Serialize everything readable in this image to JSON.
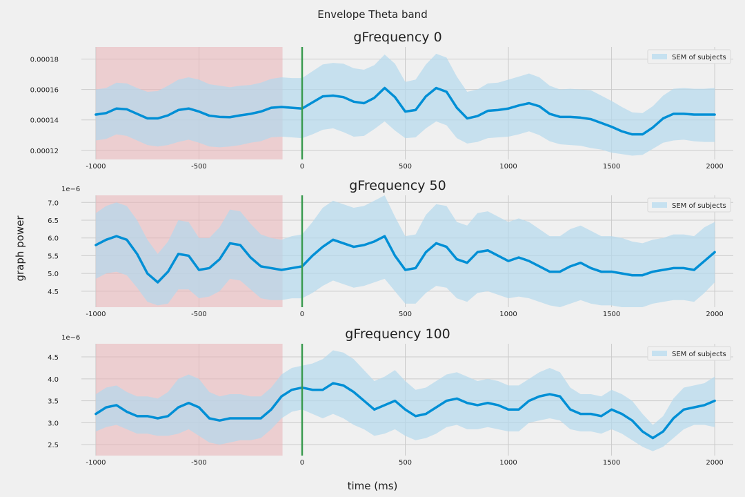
{
  "suptitle": "Envelope Theta band",
  "ylabel": "graph power",
  "xlabel": "time (ms)",
  "colors": {
    "background": "#f0f0f0",
    "grid": "#cbcbcb",
    "line": "#008fd5",
    "band": "#b3d9ec",
    "baseline_shade": "#e9b3b6",
    "onset_line": "#3a9a4f",
    "legend_fill": "#c6e1f0"
  },
  "chart_data": [
    {
      "type": "line",
      "title": "gFrequency 0",
      "legend": {
        "entries": [
          "SEM of subjects"
        ],
        "placement": "top-right"
      },
      "xlim": [
        -1070,
        2090
      ],
      "ylim": [
        0.000114,
        0.000188
      ],
      "x_ticks": [
        -1000,
        -500,
        0,
        500,
        1000,
        1500,
        2000
      ],
      "x_tick_labels": [
        "-1000",
        "-500",
        "0",
        "500",
        "1000",
        "1500",
        "2000"
      ],
      "y_ticks": [
        0.00012,
        0.00014,
        0.00016,
        0.00018
      ],
      "y_tick_labels": [
        "0.00012",
        "0.00014",
        "0.00016",
        "0.00018"
      ],
      "y_offset_label": "",
      "grid": true,
      "baseline_shade": [
        -1000,
        -95
      ],
      "onset_line_x": 0,
      "series": [
        {
          "label": "SEM of subjects",
          "x": [
            -1000,
            -950,
            -900,
            -850,
            -800,
            -750,
            -700,
            -650,
            -600,
            -550,
            -500,
            -450,
            -400,
            -350,
            -300,
            -250,
            -200,
            -150,
            -100,
            -50,
            0,
            50,
            100,
            150,
            200,
            250,
            300,
            350,
            400,
            450,
            500,
            550,
            600,
            650,
            700,
            750,
            800,
            850,
            900,
            950,
            1000,
            1050,
            1100,
            1150,
            1200,
            1250,
            1300,
            1350,
            1400,
            1450,
            1500,
            1550,
            1600,
            1650,
            1700,
            1750,
            1800,
            1850,
            1900,
            1950,
            2000
          ],
          "mean": [
            0.0001435,
            0.0001445,
            0.0001475,
            0.000147,
            0.000144,
            0.000141,
            0.000141,
            0.000143,
            0.0001465,
            0.0001475,
            0.0001455,
            0.0001428,
            0.000142,
            0.0001418,
            0.000143,
            0.000144,
            0.0001455,
            0.000148,
            0.0001485,
            0.000148,
            0.0001475,
            0.0001515,
            0.0001555,
            0.000156,
            0.000155,
            0.000152,
            0.000151,
            0.0001545,
            0.000161,
            0.000155,
            0.0001455,
            0.0001465,
            0.0001555,
            0.000161,
            0.0001585,
            0.000148,
            0.000141,
            0.0001425,
            0.000146,
            0.0001465,
            0.0001475,
            0.0001495,
            0.000151,
            0.000149,
            0.000144,
            0.000142,
            0.000142,
            0.0001415,
            0.0001405,
            0.000138,
            0.0001355,
            0.0001325,
            0.0001305,
            0.0001305,
            0.000135,
            0.000141,
            0.000144,
            0.000144,
            0.0001435,
            0.0001435,
            0.0001435
          ],
          "lower": [
            0.0001265,
            0.0001275,
            0.0001305,
            0.0001295,
            0.0001265,
            0.0001235,
            0.0001225,
            0.0001235,
            0.0001255,
            0.000127,
            0.000125,
            0.0001225,
            0.000122,
            0.0001225,
            0.0001235,
            0.000125,
            0.000126,
            0.0001285,
            0.000129,
            0.0001285,
            0.000128,
            0.0001305,
            0.0001335,
            0.0001345,
            0.000132,
            0.000129,
            0.0001295,
            0.000134,
            0.000139,
            0.000133,
            0.000128,
            0.0001285,
            0.0001345,
            0.000139,
            0.0001365,
            0.000128,
            0.0001245,
            0.0001255,
            0.000128,
            0.0001285,
            0.000129,
            0.0001305,
            0.0001325,
            0.00013,
            0.000126,
            0.000124,
            0.0001235,
            0.000123,
            0.0001215,
            0.0001205,
            0.0001185,
            0.0001175,
            0.0001165,
            0.000117,
            0.000121,
            0.000125,
            0.0001265,
            0.000127,
            0.000126,
            0.0001255,
            0.0001255
          ],
          "upper": [
            0.00016,
            0.000161,
            0.0001645,
            0.000164,
            0.000161,
            0.0001585,
            0.000159,
            0.0001625,
            0.0001665,
            0.000168,
            0.0001665,
            0.0001635,
            0.0001625,
            0.0001615,
            0.0001625,
            0.000163,
            0.0001645,
            0.000167,
            0.000168,
            0.0001675,
            0.0001675,
            0.000172,
            0.0001765,
            0.0001775,
            0.000177,
            0.000174,
            0.000173,
            0.000176,
            0.000183,
            0.000177,
            0.000165,
            0.0001665,
            0.0001765,
            0.0001835,
            0.000181,
            0.0001685,
            0.0001585,
            0.00016,
            0.000164,
            0.0001645,
            0.0001665,
            0.0001685,
            0.0001705,
            0.000168,
            0.0001625,
            0.00016,
            0.0001605,
            0.00016,
            0.0001595,
            0.000156,
            0.0001525,
            0.0001485,
            0.000145,
            0.0001445,
            0.000149,
            0.000156,
            0.0001605,
            0.000161,
            0.0001605,
            0.0001605,
            0.000161
          ]
        }
      ]
    },
    {
      "type": "line",
      "title": "gFrequency 50",
      "legend": {
        "entries": [
          "SEM of subjects"
        ],
        "placement": "top-right"
      },
      "xlim": [
        -1070,
        2090
      ],
      "ylim": [
        4.05,
        7.2
      ],
      "x_ticks": [
        -1000,
        -500,
        0,
        500,
        1000,
        1500,
        2000
      ],
      "x_tick_labels": [
        "-1000",
        "-500",
        "0",
        "500",
        "1000",
        "1500",
        "2000"
      ],
      "y_ticks": [
        4.5,
        5.0,
        5.5,
        6.0,
        6.5,
        7.0
      ],
      "y_tick_labels": [
        "4.5",
        "5.0",
        "5.5",
        "6.0",
        "6.5",
        "7.0"
      ],
      "y_offset_label": "1e−6",
      "grid": true,
      "baseline_shade": [
        -1000,
        -95
      ],
      "onset_line_x": 0,
      "series": [
        {
          "label": "SEM of subjects",
          "x": [
            -1000,
            -950,
            -900,
            -850,
            -800,
            -750,
            -700,
            -650,
            -600,
            -550,
            -500,
            -450,
            -400,
            -350,
            -300,
            -250,
            -200,
            -150,
            -100,
            -50,
            0,
            50,
            100,
            150,
            200,
            250,
            300,
            350,
            400,
            450,
            500,
            550,
            600,
            650,
            700,
            750,
            800,
            850,
            900,
            950,
            1000,
            1050,
            1100,
            1150,
            1200,
            1250,
            1300,
            1350,
            1400,
            1450,
            1500,
            1550,
            1600,
            1650,
            1700,
            1750,
            1800,
            1850,
            1900,
            1950,
            2000
          ],
          "mean": [
            5.8,
            5.95,
            6.05,
            5.95,
            5.55,
            5.0,
            4.75,
            5.05,
            5.55,
            5.5,
            5.1,
            5.15,
            5.4,
            5.85,
            5.8,
            5.45,
            5.2,
            5.15,
            5.1,
            5.15,
            5.2,
            5.5,
            5.75,
            5.95,
            5.85,
            5.75,
            5.8,
            5.9,
            6.05,
            5.5,
            5.1,
            5.15,
            5.6,
            5.85,
            5.75,
            5.4,
            5.3,
            5.6,
            5.65,
            5.5,
            5.35,
            5.45,
            5.35,
            5.2,
            5.05,
            5.05,
            5.2,
            5.3,
            5.15,
            5.05,
            5.05,
            5.0,
            4.95,
            4.95,
            5.05,
            5.1,
            5.15,
            5.15,
            5.1,
            5.35,
            5.6
          ],
          "lower": [
            4.85,
            5.0,
            5.05,
            4.95,
            4.6,
            4.2,
            4.1,
            4.15,
            4.55,
            4.55,
            4.3,
            4.35,
            4.5,
            4.85,
            4.8,
            4.55,
            4.3,
            4.25,
            4.25,
            4.3,
            4.3,
            4.45,
            4.65,
            4.8,
            4.7,
            4.6,
            4.65,
            4.75,
            4.85,
            4.5,
            4.15,
            4.15,
            4.45,
            4.65,
            4.6,
            4.3,
            4.2,
            4.45,
            4.5,
            4.4,
            4.3,
            4.35,
            4.3,
            4.2,
            4.1,
            4.05,
            4.15,
            4.25,
            4.15,
            4.1,
            4.1,
            4.05,
            4.05,
            4.05,
            4.15,
            4.2,
            4.25,
            4.25,
            4.2,
            4.45,
            4.75
          ],
          "upper": [
            6.7,
            6.9,
            7.0,
            6.9,
            6.5,
            5.95,
            5.55,
            5.9,
            6.5,
            6.45,
            6.0,
            6.0,
            6.3,
            6.8,
            6.75,
            6.4,
            6.1,
            6.0,
            5.95,
            6.05,
            6.1,
            6.45,
            6.85,
            7.05,
            6.95,
            6.85,
            6.9,
            7.05,
            7.2,
            6.6,
            6.05,
            6.1,
            6.65,
            6.95,
            6.9,
            6.45,
            6.35,
            6.7,
            6.75,
            6.6,
            6.45,
            6.55,
            6.45,
            6.25,
            6.05,
            6.05,
            6.25,
            6.35,
            6.2,
            6.05,
            6.05,
            6.0,
            5.9,
            5.85,
            5.95,
            6.0,
            6.1,
            6.1,
            6.05,
            6.3,
            6.45
          ]
        }
      ]
    },
    {
      "type": "line",
      "title": "gFrequency 100",
      "legend": {
        "entries": [
          "SEM of subjects"
        ],
        "placement": "top-right"
      },
      "xlim": [
        -1070,
        2090
      ],
      "ylim": [
        2.25,
        4.8
      ],
      "x_ticks": [
        -1000,
        -500,
        0,
        500,
        1000,
        1500,
        2000
      ],
      "x_tick_labels": [
        "-1000",
        "-500",
        "0",
        "500",
        "1000",
        "1500",
        "2000"
      ],
      "y_ticks": [
        2.5,
        3.0,
        3.5,
        4.0,
        4.5
      ],
      "y_tick_labels": [
        "2.5",
        "3.0",
        "3.5",
        "4.0",
        "4.5"
      ],
      "y_offset_label": "1e−6",
      "grid": true,
      "baseline_shade": [
        -1000,
        -95
      ],
      "onset_line_x": 0,
      "series": [
        {
          "label": "SEM of subjects",
          "x": [
            -1000,
            -950,
            -900,
            -850,
            -800,
            -750,
            -700,
            -650,
            -600,
            -550,
            -500,
            -450,
            -400,
            -350,
            -300,
            -250,
            -200,
            -150,
            -100,
            -50,
            0,
            50,
            100,
            150,
            200,
            250,
            300,
            350,
            400,
            450,
            500,
            550,
            600,
            650,
            700,
            750,
            800,
            850,
            900,
            950,
            1000,
            1050,
            1100,
            1150,
            1200,
            1250,
            1300,
            1350,
            1400,
            1450,
            1500,
            1550,
            1600,
            1650,
            1700,
            1750,
            1800,
            1850,
            1900,
            1950,
            2000
          ],
          "mean": [
            3.2,
            3.35,
            3.4,
            3.25,
            3.15,
            3.15,
            3.1,
            3.15,
            3.35,
            3.45,
            3.35,
            3.1,
            3.05,
            3.1,
            3.1,
            3.1,
            3.1,
            3.3,
            3.6,
            3.75,
            3.8,
            3.75,
            3.75,
            3.9,
            3.85,
            3.7,
            3.5,
            3.3,
            3.4,
            3.5,
            3.3,
            3.15,
            3.2,
            3.35,
            3.5,
            3.55,
            3.45,
            3.4,
            3.45,
            3.4,
            3.3,
            3.3,
            3.5,
            3.6,
            3.65,
            3.6,
            3.3,
            3.2,
            3.2,
            3.15,
            3.3,
            3.2,
            3.05,
            2.8,
            2.65,
            2.8,
            3.1,
            3.3,
            3.35,
            3.4,
            3.5
          ],
          "lower": [
            2.8,
            2.9,
            2.95,
            2.85,
            2.75,
            2.75,
            2.7,
            2.7,
            2.75,
            2.85,
            2.7,
            2.55,
            2.5,
            2.55,
            2.6,
            2.6,
            2.65,
            2.85,
            3.1,
            3.25,
            3.3,
            3.2,
            3.1,
            3.2,
            3.1,
            2.95,
            2.85,
            2.7,
            2.75,
            2.85,
            2.7,
            2.6,
            2.65,
            2.75,
            2.9,
            2.95,
            2.85,
            2.85,
            2.9,
            2.85,
            2.8,
            2.8,
            3.0,
            3.05,
            3.1,
            3.05,
            2.85,
            2.8,
            2.8,
            2.75,
            2.85,
            2.75,
            2.6,
            2.45,
            2.35,
            2.45,
            2.65,
            2.85,
            2.95,
            2.95,
            2.9
          ],
          "upper": [
            3.65,
            3.8,
            3.85,
            3.7,
            3.6,
            3.6,
            3.55,
            3.7,
            4.0,
            4.1,
            4.0,
            3.7,
            3.6,
            3.65,
            3.65,
            3.6,
            3.6,
            3.8,
            4.1,
            4.25,
            4.3,
            4.35,
            4.45,
            4.65,
            4.6,
            4.45,
            4.2,
            3.95,
            4.05,
            4.2,
            3.95,
            3.75,
            3.8,
            3.95,
            4.1,
            4.15,
            4.05,
            3.95,
            4.0,
            3.95,
            3.85,
            3.85,
            4.0,
            4.15,
            4.25,
            4.15,
            3.8,
            3.65,
            3.65,
            3.6,
            3.75,
            3.65,
            3.5,
            3.2,
            2.95,
            3.15,
            3.55,
            3.8,
            3.85,
            3.9,
            4.05
          ]
        }
      ]
    }
  ]
}
